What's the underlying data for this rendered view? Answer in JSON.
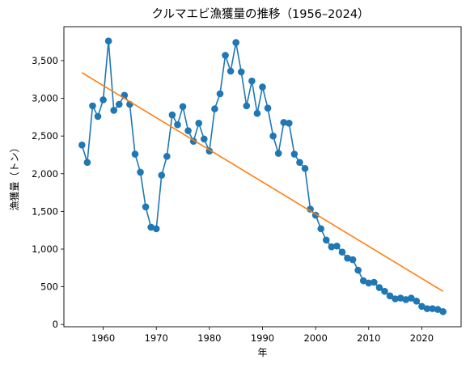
{
  "chart_data": {
    "type": "line",
    "title": "クルマエビ漁獲量の推移（1956–2024）",
    "xlabel": "年",
    "ylabel": "漁獲量（トン）",
    "xlim": [
      1952.6,
      2027.4
    ],
    "ylim": [
      -30,
      3950
    ],
    "x_ticks": [
      1960,
      1970,
      1980,
      1990,
      2000,
      2010,
      2020
    ],
    "y_ticks": [
      0,
      500,
      1000,
      1500,
      2000,
      2500,
      3000,
      3500
    ],
    "y_tick_labels": [
      "0",
      "500",
      "1,000",
      "1,500",
      "2,000",
      "2,500",
      "3,000",
      "3,500"
    ],
    "grid": false,
    "legend": "none",
    "series": [
      {
        "kind": "line-with-markers",
        "color": "#1f77b4",
        "x": [
          1956,
          1957,
          1958,
          1959,
          1960,
          1961,
          1962,
          1963,
          1964,
          1965,
          1966,
          1967,
          1968,
          1969,
          1970,
          1971,
          1972,
          1973,
          1974,
          1975,
          1976,
          1977,
          1978,
          1979,
          1980,
          1981,
          1982,
          1983,
          1984,
          1985,
          1986,
          1987,
          1988,
          1989,
          1990,
          1991,
          1992,
          1993,
          1994,
          1995,
          1996,
          1997,
          1998,
          1999,
          2000,
          2001,
          2002,
          2003,
          2004,
          2005,
          2006,
          2007,
          2008,
          2009,
          2010,
          2011,
          2012,
          2013,
          2014,
          2015,
          2016,
          2017,
          2018,
          2019,
          2020,
          2021,
          2022,
          2023,
          2024
        ],
        "values": [
          2380,
          2150,
          2900,
          2760,
          2980,
          3760,
          2840,
          2920,
          3040,
          2920,
          2260,
          2020,
          1560,
          1290,
          1270,
          1980,
          2230,
          2780,
          2650,
          2890,
          2570,
          2430,
          2670,
          2460,
          2300,
          2860,
          3060,
          3570,
          3360,
          3740,
          3350,
          2900,
          3230,
          2800,
          3150,
          2870,
          2500,
          2270,
          2680,
          2670,
          2260,
          2150,
          2070,
          1530,
          1450,
          1270,
          1120,
          1030,
          1040,
          960,
          880,
          860,
          720,
          580,
          550,
          560,
          490,
          440,
          380,
          340,
          350,
          330,
          350,
          310,
          240,
          210,
          210,
          200,
          170
        ]
      },
      {
        "kind": "trend-line",
        "color": "#ff7f0e",
        "x": [
          1956,
          2024
        ],
        "values": [
          3340,
          440
        ]
      }
    ]
  }
}
